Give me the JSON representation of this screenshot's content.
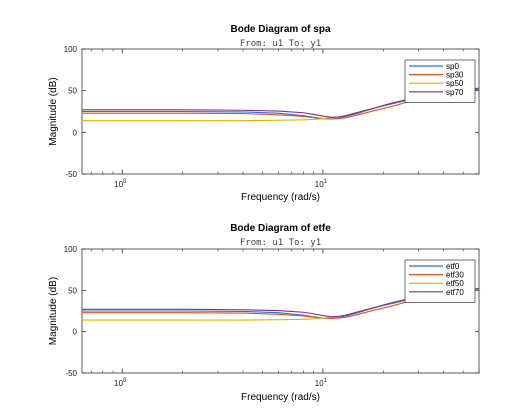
{
  "chart_data": [
    {
      "type": "line",
      "title": "Bode Diagram of spa",
      "subtitle": "From: u1  To: y1",
      "xlabel": "Frequency  (rad/s)",
      "ylabel": "Magnitude (dB)",
      "xscale": "log",
      "xlim": [
        0.63,
        60
      ],
      "ylim": [
        -50,
        100
      ],
      "yticks": [
        "100",
        "50",
        "0",
        "-50"
      ],
      "xticks": [
        {
          "base": "10",
          "exp": "0"
        },
        {
          "base": "10",
          "exp": "1"
        }
      ],
      "legend_position": "top-right",
      "series": [
        {
          "name": "sp0",
          "color": "#1f77d0",
          "x": [
            0.63,
            1,
            2,
            4,
            6,
            8,
            9,
            10,
            11,
            12,
            13,
            15,
            18,
            22,
            27,
            35,
            45,
            60
          ],
          "y": [
            25,
            25,
            25,
            24.5,
            23,
            20,
            18,
            16.5,
            16,
            17,
            19,
            23,
            29,
            34,
            39,
            45,
            50,
            53
          ]
        },
        {
          "name": "sp30",
          "color": "#e0531e",
          "x": [
            0.63,
            1,
            2,
            4,
            6,
            8,
            9,
            10,
            11,
            12,
            13,
            15,
            18,
            22,
            27,
            35,
            45,
            60
          ],
          "y": [
            23,
            23,
            23,
            22.5,
            21,
            19,
            17.5,
            16.5,
            16,
            16.5,
            17.5,
            21,
            26,
            31,
            37,
            43,
            48,
            52
          ]
        },
        {
          "name": "sp50",
          "color": "#e8b000",
          "x": [
            0.63,
            1,
            2,
            4,
            6,
            8,
            9,
            10,
            11,
            12,
            13,
            15,
            18,
            22,
            27,
            35,
            45,
            60
          ],
          "y": [
            14,
            14,
            14,
            14,
            14.5,
            15,
            15.5,
            16.5,
            17.5,
            18.5,
            20,
            24,
            29,
            35,
            40,
            45,
            49,
            52
          ]
        },
        {
          "name": "sp70",
          "color": "#7e2f8e",
          "x": [
            0.63,
            1,
            2,
            4,
            6,
            8,
            9,
            10,
            11,
            12,
            13,
            15,
            18,
            22,
            27,
            35,
            45,
            60
          ],
          "y": [
            27,
            27,
            27,
            26.5,
            25.5,
            23.5,
            21.5,
            19.5,
            18,
            18.5,
            20,
            24,
            29,
            35,
            40,
            46,
            50,
            52
          ]
        }
      ]
    },
    {
      "type": "line",
      "title": "Bode Diagram of etfe",
      "subtitle": "From: u1  To: y1",
      "xlabel": "Frequency  (rad/s)",
      "ylabel": "Magnitude (dB)",
      "xscale": "log",
      "xlim": [
        0.63,
        60
      ],
      "ylim": [
        -50,
        100
      ],
      "yticks": [
        "100",
        "50",
        "0",
        "-50"
      ],
      "xticks": [
        {
          "base": "10",
          "exp": "0"
        },
        {
          "base": "10",
          "exp": "1"
        }
      ],
      "legend_position": "top-right",
      "series": [
        {
          "name": "etf0",
          "color": "#1f77d0",
          "x": [
            0.63,
            1,
            2,
            4,
            6,
            8,
            9,
            10,
            11,
            12,
            13,
            15,
            18,
            22,
            27,
            35,
            45,
            60
          ],
          "y": [
            25,
            25,
            25,
            24.5,
            23,
            20,
            18,
            16.5,
            16,
            17,
            19,
            23,
            29,
            34,
            39,
            45,
            50,
            52
          ]
        },
        {
          "name": "etf30",
          "color": "#e0531e",
          "x": [
            0.63,
            1,
            2,
            4,
            6,
            8,
            9,
            10,
            11,
            12,
            13,
            15,
            18,
            22,
            27,
            35,
            45,
            60
          ],
          "y": [
            23,
            23,
            23,
            22.5,
            21,
            19,
            17.5,
            16.5,
            16,
            16.5,
            17.5,
            21,
            26,
            31,
            37,
            43,
            48,
            52
          ]
        },
        {
          "name": "etf50",
          "color": "#e8b000",
          "x": [
            0.63,
            1,
            2,
            4,
            6,
            8,
            9,
            10,
            11,
            12,
            13,
            15,
            18,
            22,
            27,
            35,
            45,
            60
          ],
          "y": [
            14,
            14,
            14,
            14,
            14.5,
            15,
            15.5,
            16.5,
            17.5,
            18.5,
            20,
            24,
            29,
            35,
            40,
            45,
            49,
            51
          ]
        },
        {
          "name": "etf70",
          "color": "#7e2f8e",
          "x": [
            0.63,
            1,
            2,
            4,
            6,
            8,
            9,
            10,
            11,
            12,
            13,
            15,
            18,
            22,
            27,
            35,
            45,
            60
          ],
          "y": [
            27,
            27,
            27,
            26.5,
            25.5,
            23.5,
            21.5,
            19.5,
            18,
            18.5,
            20,
            24,
            29,
            35,
            40,
            46,
            50,
            52
          ]
        }
      ]
    }
  ]
}
